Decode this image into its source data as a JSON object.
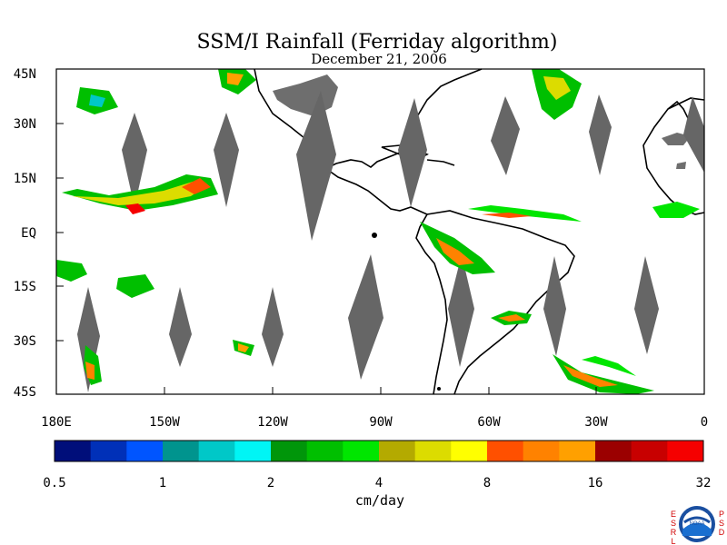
{
  "title": "SSM/I Rainfall (Ferriday algorithm)",
  "subtitle": "December 21, 2006",
  "y_ticks": [
    "45N",
    "30N",
    "15N",
    "EQ",
    "15S",
    "30S",
    "45S"
  ],
  "x_ticks": [
    "180E",
    "150W",
    "120W",
    "90W",
    "60W",
    "30W",
    "0"
  ],
  "colorbar": {
    "colors": [
      "#000e7a",
      "#0030b8",
      "#0055ff",
      "#00948e",
      "#00c8c8",
      "#00f5f5",
      "#00960a",
      "#00bf00",
      "#00e600",
      "#b4aa00",
      "#dcdc00",
      "#ffff00",
      "#ff5000",
      "#ff8200",
      "#ffa000",
      "#9b0000",
      "#c80000",
      "#f50000"
    ],
    "tick_labels": [
      "0.5",
      "1",
      "2",
      "4",
      "8",
      "16",
      "32"
    ],
    "unit": "cm/day"
  },
  "logo": {
    "left_letters": "ESRL",
    "right_letters": "PSD",
    "center": "NOAA"
  }
}
